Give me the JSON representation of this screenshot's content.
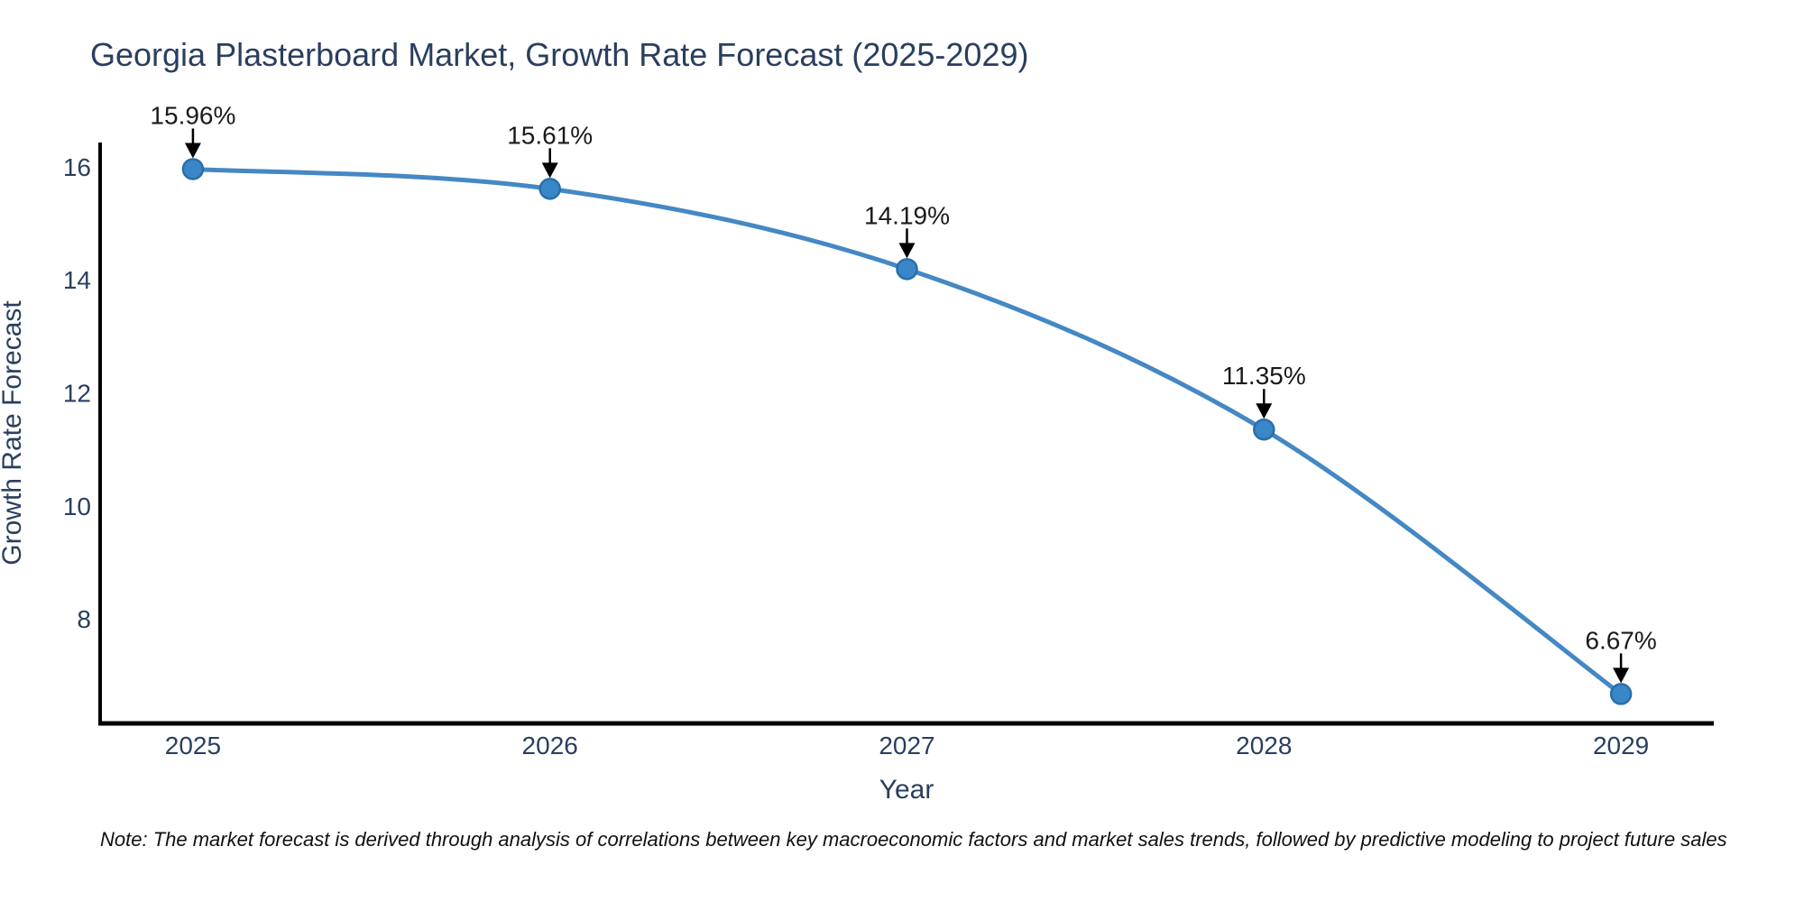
{
  "chart_data": {
    "type": "line",
    "line_shape": "spline",
    "title": "Georgia Plasterboard Market, Growth Rate Forecast (2025-2029)",
    "xlabel": "Year",
    "ylabel": "Growth Rate Forecast",
    "categories": [
      2025,
      2026,
      2027,
      2028,
      2029
    ],
    "series": [
      {
        "name": "Growth Rate Forecast",
        "values": [
          15.96,
          15.61,
          14.19,
          11.35,
          6.67
        ]
      }
    ],
    "point_labels": [
      "15.96%",
      "15.61%",
      "14.19%",
      "11.35%",
      "6.67%"
    ],
    "x_tick_labels": [
      "2025",
      "2026",
      "2027",
      "2028",
      "2029"
    ],
    "y_ticks": [
      8,
      10,
      12,
      14,
      16
    ],
    "y_tick_labels": [
      "8",
      "10",
      "12",
      "14",
      "16"
    ],
    "x_range": [
      2024.74,
      2029.26
    ],
    "y_range": [
      6.15,
      16.43
    ],
    "grid": false,
    "legend_position": "none",
    "annotation_arrow_direction": "down",
    "note": "Note: The market forecast is derived through analysis of correlations between key macroeconomic factors and market sales trends, followed by predictive modeling to project future sales",
    "colors": {
      "line": "#4488c4",
      "marker_fill": "#3987c9",
      "marker_edge": "#2a6ea9",
      "axis_line": "#000000",
      "tick_text": "#2a3f5f",
      "title_text": "#2a3f5f",
      "annotation_text": "#1a1a1a",
      "arrow": "#000000",
      "note_text": "#111111",
      "background": "#ffffff"
    }
  }
}
